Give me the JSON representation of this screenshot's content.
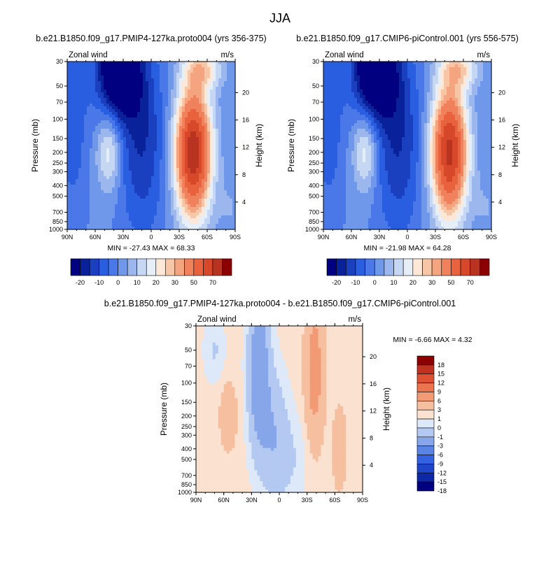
{
  "figure": {
    "title": "JJA",
    "colors": {
      "full_palette": [
        "#000080",
        "#0a2299",
        "#1a40c0",
        "#2a5ee0",
        "#4a78e8",
        "#6f97ea",
        "#9cb6ee",
        "#c6d7f4",
        "#e6eef8",
        "#fde8d8",
        "#f7c6a6",
        "#f4a47f",
        "#ef815c",
        "#e8623e",
        "#d7482a",
        "#b83320",
        "#8b0000"
      ],
      "diff_palette": [
        "#000080",
        "#0d28a6",
        "#1f45c8",
        "#3562e0",
        "#5a83e6",
        "#87a6ea",
        "#b4c9f2",
        "#dde8f8",
        "#fbe2d0",
        "#f6c0a0",
        "#f19a74",
        "#ea744f",
        "#de5234",
        "#c03220",
        "#8b0000"
      ]
    },
    "panels": [
      {
        "id": "pmip4",
        "title": "b.e21.B1850.f09_g17.PMIP4-127ka.proto004 (yrs 356-375)",
        "left_label": "Zonal wind",
        "right_label": "m/s",
        "min_max": "MIN = -27.43   MAX = 68.33",
        "y_label": "Pressure (mb)",
        "y2_label": "Height (km)"
      },
      {
        "id": "cmip6",
        "title": "b.e21.B1850.f09_g17.CMIP6-piControl.001 (yrs 556-575)",
        "left_label": "Zonal wind",
        "right_label": "m/s",
        "min_max": "MIN = -21.98   MAX = 64.28",
        "y_label": "Pressure (mb)",
        "y2_label": "Height (km)"
      },
      {
        "id": "diff",
        "title": "b.e21.B1850.f09_g17.PMIP4-127ka.proto004 - b.e21.B1850.f09_g17.CMIP6-piControl.001",
        "left_label": "Zonal wind",
        "right_label": "m/s",
        "min_max": "MIN =  -6.66   MAX =   4.32",
        "y_label": "Pressure (mb)",
        "y2_label": "Height (km)"
      }
    ],
    "full_colorbar_labels": [
      "-20",
      "-10",
      "0",
      "10",
      "20",
      "30",
      "50",
      "70"
    ],
    "diff_colorbar_labels": [
      "18",
      "15",
      "12",
      "9",
      "6",
      "3",
      "1",
      "0",
      "-1",
      "-3",
      "-6",
      "-9",
      "-12",
      "-15",
      "-18"
    ]
  },
  "chart_data": [
    {
      "type": "heatmap",
      "title": "b.e21.B1850.f09_g17.PMIP4-127ka.proto004 (yrs 356-375)",
      "variable": "Zonal wind",
      "units": "m/s",
      "xlabel": "",
      "ylabel": "Pressure (mb)",
      "y2label": "Height (km)",
      "x_ticks": [
        "90N",
        "60N",
        "30N",
        "0",
        "30S",
        "60S",
        "90S"
      ],
      "y_ticks": [
        30,
        50,
        70,
        100,
        150,
        200,
        250,
        300,
        400,
        500,
        700,
        850,
        1000
      ],
      "y2_ticks": [
        4,
        8,
        12,
        16,
        20
      ],
      "min": -27.43,
      "max": 68.33,
      "levels": [
        -25,
        -20,
        -15,
        -10,
        -5,
        0,
        5,
        10,
        15,
        20,
        25,
        30,
        40,
        50,
        60,
        70
      ]
    },
    {
      "type": "heatmap",
      "title": "b.e21.B1850.f09_g17.CMIP6-piControl.001 (yrs 556-575)",
      "variable": "Zonal wind",
      "units": "m/s",
      "xlabel": "",
      "ylabel": "Pressure (mb)",
      "y2label": "Height (km)",
      "x_ticks": [
        "90N",
        "60N",
        "30N",
        "0",
        "30S",
        "60S",
        "90S"
      ],
      "y_ticks": [
        30,
        50,
        70,
        100,
        150,
        200,
        250,
        300,
        400,
        500,
        700,
        850,
        1000
      ],
      "y2_ticks": [
        4,
        8,
        12,
        16,
        20
      ],
      "min": -21.98,
      "max": 64.28,
      "levels": [
        -25,
        -20,
        -15,
        -10,
        -5,
        0,
        5,
        10,
        15,
        20,
        25,
        30,
        40,
        50,
        60,
        70
      ]
    },
    {
      "type": "heatmap",
      "title": "b.e21.B1850.f09_g17.PMIP4-127ka.proto004 - b.e21.B1850.f09_g17.CMIP6-piControl.001",
      "variable": "Zonal wind",
      "units": "m/s",
      "xlabel": "",
      "ylabel": "Pressure (mb)",
      "y2label": "Height (km)",
      "x_ticks": [
        "90N",
        "60N",
        "30N",
        "0",
        "30S",
        "60S",
        "90S"
      ],
      "y_ticks": [
        30,
        50,
        70,
        100,
        150,
        200,
        250,
        300,
        400,
        500,
        700,
        850,
        1000
      ],
      "y2_ticks": [
        4,
        8,
        12,
        16,
        20
      ],
      "min": -6.66,
      "max": 4.32,
      "levels": [
        -18,
        -15,
        -12,
        -9,
        -6,
        -3,
        -1,
        0,
        1,
        3,
        6,
        9,
        12,
        15,
        18
      ]
    }
  ]
}
